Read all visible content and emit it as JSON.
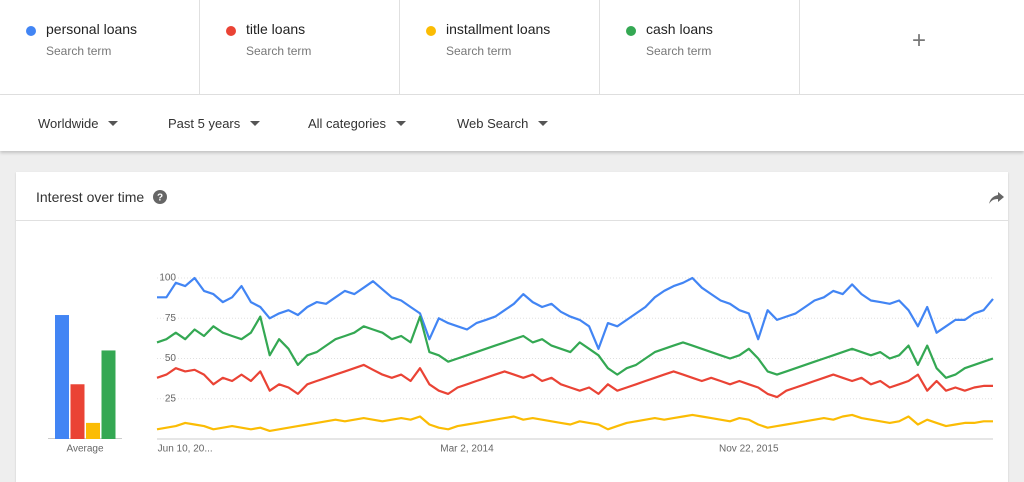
{
  "header": {
    "subtitles": [
      "Search term",
      "Search term",
      "Search term",
      "Search term"
    ]
  },
  "filters": [
    "Worldwide",
    "Past 5 years",
    "All categories",
    "Web Search"
  ],
  "card": {
    "title": "Interest over time"
  },
  "chart_data": [
    {
      "type": "bar",
      "xlabel": "Average",
      "values": [
        77,
        34,
        10,
        55
      ],
      "colors": [
        "#4285f4",
        "#ea4335",
        "#fbbc04",
        "#34a853"
      ],
      "ylim": [
        0,
        100
      ]
    },
    {
      "type": "line",
      "categories": [
        null,
        null,
        null,
        "Jun 10, 20...",
        null,
        null,
        null,
        null,
        null,
        null,
        null,
        null,
        null,
        null,
        null,
        null,
        null,
        null,
        null,
        null,
        null,
        null,
        null,
        null,
        null,
        null,
        null,
        null,
        null,
        null,
        null,
        null,
        null,
        "Mar 2, 2014",
        null,
        null,
        null,
        null,
        null,
        null,
        null,
        null,
        null,
        null,
        null,
        null,
        null,
        null,
        null,
        null,
        null,
        null,
        null,
        null,
        null,
        null,
        null,
        null,
        null,
        null,
        null,
        null,
        null,
        "Nov 22, 2015",
        null,
        null,
        null,
        null,
        null,
        null,
        null,
        null,
        null,
        null,
        null,
        null,
        null,
        null,
        null,
        null,
        null,
        null,
        null,
        null,
        null,
        null,
        null,
        null,
        null,
        null
      ],
      "ylim": [
        0,
        100
      ],
      "yticks": [
        25,
        50,
        75,
        100
      ],
      "grid": true,
      "series": [
        {
          "name": "personal loans",
          "color": "#4285f4",
          "values": [
            88,
            88,
            97,
            95,
            100,
            92,
            90,
            85,
            88,
            95,
            85,
            82,
            75,
            78,
            80,
            77,
            82,
            85,
            84,
            88,
            92,
            90,
            94,
            98,
            93,
            88,
            86,
            82,
            78,
            62,
            75,
            72,
            70,
            68,
            72,
            74,
            76,
            80,
            84,
            90,
            85,
            82,
            84,
            79,
            76,
            74,
            70,
            56,
            72,
            70,
            74,
            78,
            82,
            88,
            92,
            95,
            97,
            100,
            94,
            90,
            86,
            84,
            80,
            78,
            62,
            80,
            74,
            76,
            78,
            82,
            86,
            88,
            92,
            90,
            96,
            90,
            86,
            85,
            84,
            86,
            80,
            70,
            82,
            66,
            70,
            74,
            74,
            78,
            80,
            87
          ]
        },
        {
          "name": "title loans",
          "color": "#ea4335",
          "values": [
            38,
            40,
            44,
            42,
            43,
            40,
            34,
            38,
            36,
            40,
            36,
            42,
            30,
            34,
            32,
            28,
            34,
            36,
            38,
            40,
            42,
            44,
            46,
            43,
            40,
            38,
            40,
            36,
            44,
            34,
            30,
            28,
            32,
            34,
            36,
            38,
            40,
            42,
            40,
            38,
            40,
            36,
            38,
            34,
            32,
            30,
            32,
            28,
            34,
            30,
            32,
            34,
            36,
            38,
            40,
            42,
            40,
            38,
            36,
            38,
            36,
            34,
            36,
            34,
            32,
            28,
            26,
            30,
            32,
            34,
            36,
            38,
            40,
            38,
            36,
            38,
            34,
            36,
            32,
            34,
            36,
            40,
            30,
            36,
            30,
            32,
            30,
            32,
            33,
            33
          ]
        },
        {
          "name": "installment loans",
          "color": "#fbbc04",
          "values": [
            6,
            7,
            8,
            10,
            9,
            8,
            6,
            7,
            8,
            7,
            6,
            7,
            5,
            6,
            7,
            8,
            9,
            10,
            11,
            12,
            11,
            12,
            13,
            12,
            11,
            12,
            13,
            12,
            14,
            9,
            7,
            6,
            8,
            9,
            10,
            11,
            12,
            13,
            14,
            12,
            13,
            12,
            11,
            10,
            9,
            11,
            10,
            9,
            6,
            8,
            10,
            11,
            12,
            13,
            12,
            13,
            14,
            15,
            14,
            13,
            12,
            11,
            13,
            12,
            9,
            7,
            8,
            9,
            10,
            11,
            12,
            13,
            12,
            14,
            15,
            13,
            12,
            11,
            10,
            11,
            14,
            9,
            12,
            10,
            8,
            9,
            10,
            10,
            11,
            11
          ]
        },
        {
          "name": "cash loans",
          "color": "#34a853",
          "values": [
            60,
            62,
            66,
            62,
            68,
            64,
            70,
            66,
            64,
            62,
            66,
            76,
            52,
            62,
            56,
            46,
            52,
            54,
            58,
            62,
            64,
            66,
            70,
            68,
            66,
            62,
            64,
            60,
            76,
            54,
            52,
            48,
            50,
            52,
            54,
            56,
            58,
            60,
            62,
            64,
            60,
            62,
            58,
            56,
            54,
            60,
            56,
            52,
            44,
            40,
            44,
            46,
            50,
            54,
            56,
            58,
            60,
            58,
            56,
            54,
            52,
            50,
            52,
            56,
            50,
            42,
            40,
            42,
            44,
            46,
            48,
            50,
            52,
            54,
            56,
            54,
            52,
            54,
            50,
            52,
            58,
            46,
            58,
            44,
            38,
            40,
            44,
            46,
            48,
            50
          ]
        }
      ]
    }
  ]
}
